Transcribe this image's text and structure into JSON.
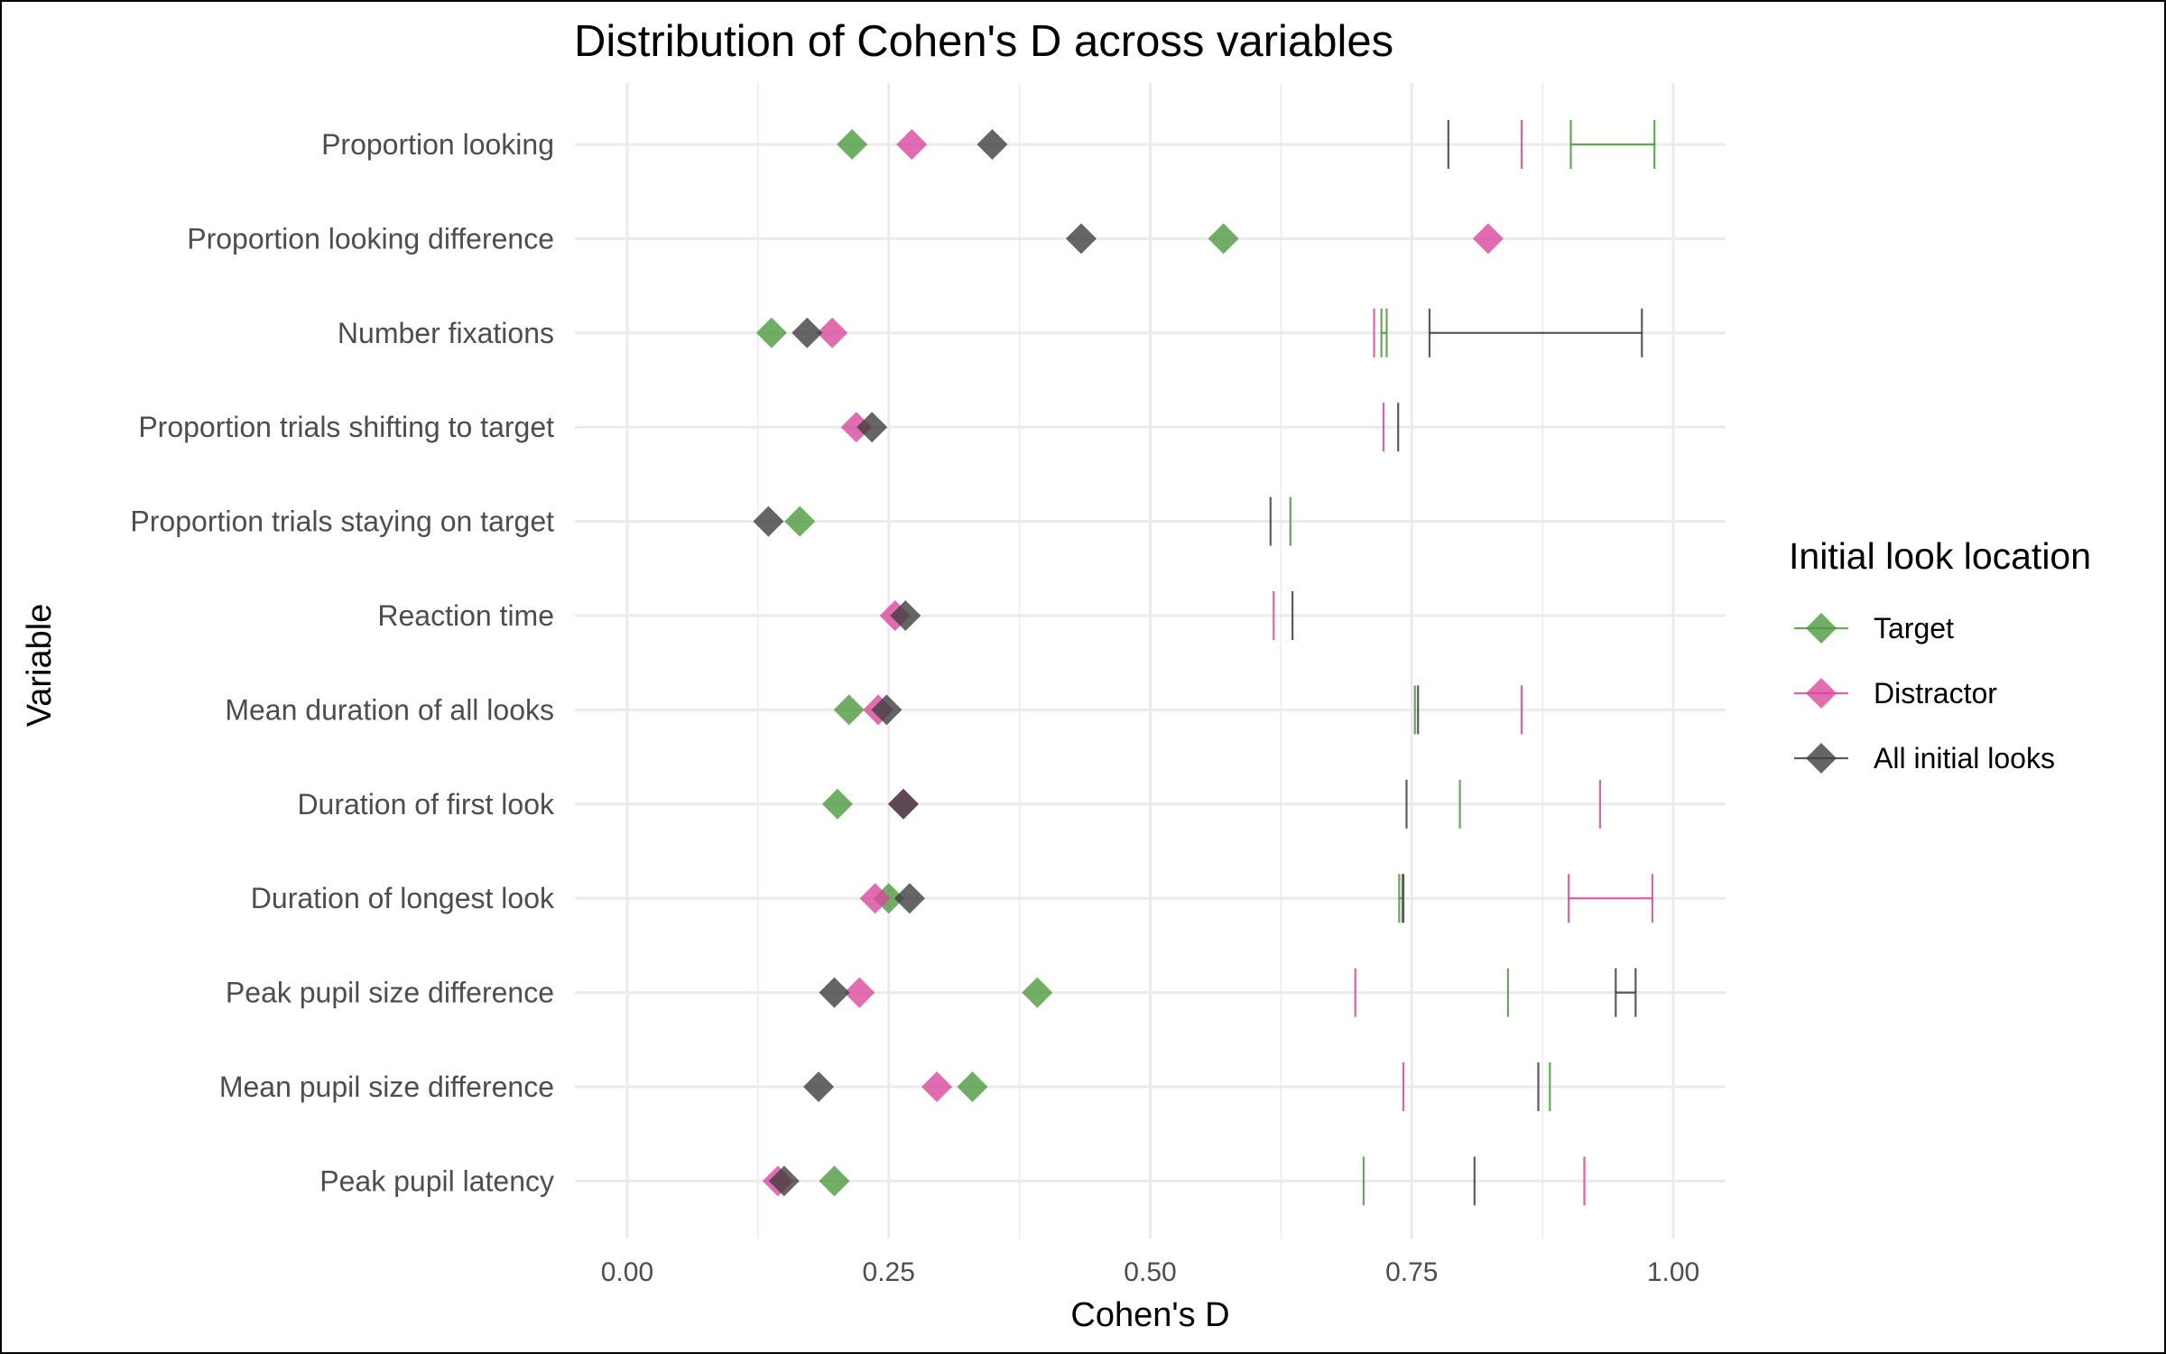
{
  "chart_data": {
    "type": "scatter",
    "title": "Distribution of Cohen's D across variables",
    "xlabel": "Cohen's D",
    "ylabel": "Variable",
    "xlim": [
      -0.05,
      1.05
    ],
    "x_ticks": [
      0.0,
      0.25,
      0.5,
      0.75,
      1.0
    ],
    "x_tick_labels": [
      "0.00",
      "0.25",
      "0.50",
      "0.75",
      "1.00"
    ],
    "grid": true,
    "legend": {
      "title": "Initial look location",
      "position": "right"
    },
    "categories": [
      "Proportion looking",
      "Proportion looking difference",
      "Number fixations",
      "Proportion trials shifting to target",
      "Proportion trials staying on target",
      "Reaction time",
      "Mean duration of all looks",
      "Duration of first look",
      "Duration of longest look",
      "Peak pupil size difference",
      "Mean pupil size difference",
      "Peak pupil latency"
    ],
    "series": [
      {
        "name": "Target",
        "color": "#4d9a3f",
        "values": [
          0.215,
          0.57,
          0.138,
          null,
          0.165,
          null,
          0.212,
          0.201,
          0.25,
          0.392,
          0.33,
          0.198
        ],
        "interval_low": [
          0.902,
          null,
          0.721,
          null,
          0.634,
          null,
          0.753,
          0.796,
          0.738,
          0.842,
          0.882,
          0.704
        ],
        "interval_high": [
          0.982,
          null,
          0.726,
          null,
          0.636,
          null,
          0.755,
          0.798,
          0.741,
          0.842,
          0.882,
          0.704
        ]
      },
      {
        "name": "Distractor",
        "color": "#d9479b",
        "values": [
          0.272,
          0.823,
          0.196,
          0.219,
          null,
          0.256,
          0.24,
          0.264,
          0.237,
          0.222,
          0.296,
          0.144
        ],
        "interval_low": [
          0.855,
          null,
          0.714,
          0.723,
          null,
          0.618,
          0.855,
          0.93,
          0.9,
          0.696,
          0.742,
          0.915
        ],
        "interval_high": [
          0.855,
          null,
          0.716,
          0.723,
          null,
          0.618,
          0.855,
          0.93,
          0.98,
          0.696,
          0.742,
          0.915
        ]
      },
      {
        "name": "All initial looks",
        "color": "#3f3f3f",
        "values": [
          0.349,
          0.434,
          0.172,
          0.234,
          0.135,
          0.266,
          0.248,
          0.264,
          0.27,
          0.198,
          0.183,
          0.15
        ],
        "interval_low": [
          0.785,
          null,
          0.767,
          0.737,
          0.615,
          0.636,
          0.756,
          0.745,
          0.742,
          0.945,
          0.871,
          0.81
        ],
        "interval_high": [
          0.785,
          null,
          0.97,
          0.737,
          0.615,
          0.636,
          0.756,
          0.745,
          0.742,
          0.964,
          0.871,
          0.81
        ]
      }
    ]
  }
}
